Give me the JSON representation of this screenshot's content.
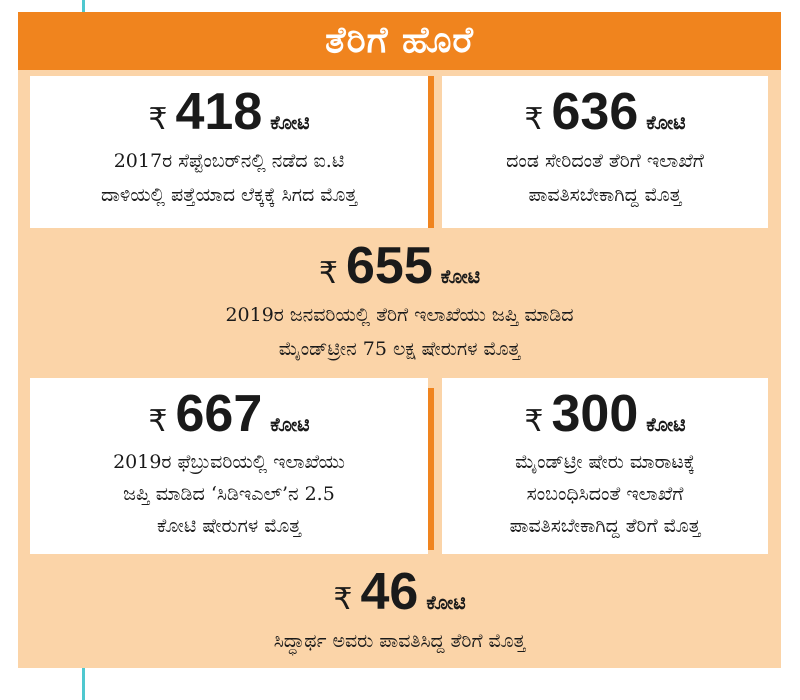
{
  "title": "ತೆರಿಗೆ ಹೊರೆ",
  "items": [
    {
      "rupee": "₹",
      "amount": "418",
      "unit": "ಕೋಟಿ",
      "lines": [
        "2017ರ ಸೆಪ್ಟೆಂಬರ್‌ನಲ್ಲಿ ನಡೆದ ಐ.ಟಿ",
        "ದಾಳಿಯಲ್ಲಿ ಪತ್ತೆಯಾದ ಲೆಕ್ಕಕ್ಕೆ ಸಿಗದ ಮೊತ್ತ"
      ]
    },
    {
      "rupee": "₹",
      "amount": "636",
      "unit": "ಕೋಟಿ",
      "lines": [
        "ದಂಡ ಸೇರಿದಂತೆ ತೆರಿಗೆ ಇಲಾಖೆಗೆ",
        "ಪಾವತಿಸಬೇಕಾಗಿದ್ದ ಮೊತ್ತ"
      ]
    },
    {
      "rupee": "₹",
      "amount": "655",
      "unit": "ಕೋಟಿ",
      "lines": [
        "2019ರ ಜನವರಿಯಲ್ಲಿ ತೆರಿಗೆ ಇಲಾಖೆಯು ಜಪ್ತಿ ಮಾಡಿದ",
        "ಮೈಂಡ್‌ಟ್ರೀನ 75 ಲಕ್ಷ ಷೇರುಗಳ ಮೊತ್ತ"
      ]
    },
    {
      "rupee": "₹",
      "amount": "667",
      "unit": "ಕೋಟಿ",
      "lines": [
        "2019ರ ಫೆಬ್ರುವರಿಯಲ್ಲಿ ಇಲಾಖೆಯು",
        "ಜಪ್ತಿ ಮಾಡಿದ ‘ಸಿಡಿಇಎಲ್’ನ 2.5",
        "ಕೋಟಿ ಷೇರುಗಳ ಮೊತ್ತ"
      ]
    },
    {
      "rupee": "₹",
      "amount": "300",
      "unit": "ಕೋಟಿ",
      "lines": [
        "ಮೈಂಡ್‌ಟ್ರೀ ಷೇರು ಮಾರಾಟಕ್ಕೆ",
        "ಸಂಬಂಧಿಸಿದಂತೆ ಇಲಾಖೆಗೆ",
        "ಪಾವತಿಸಬೇಕಾಗಿದ್ದ ತೆರಿಗೆ ಮೊತ್ತ"
      ]
    },
    {
      "rupee": "₹",
      "amount": "46",
      "unit": "ಕೋಟಿ",
      "lines": [
        "ಸಿದ್ಧಾರ್ಥ ಅವರು ಪಾವತಿಸಿದ್ದ ತೆರಿಗೆ ಮೊತ್ತ"
      ]
    }
  ],
  "colors": {
    "header": "#f0841e",
    "panel": "#fbd4a8",
    "white": "#ffffff",
    "accent_line": "#4fc8cf"
  }
}
